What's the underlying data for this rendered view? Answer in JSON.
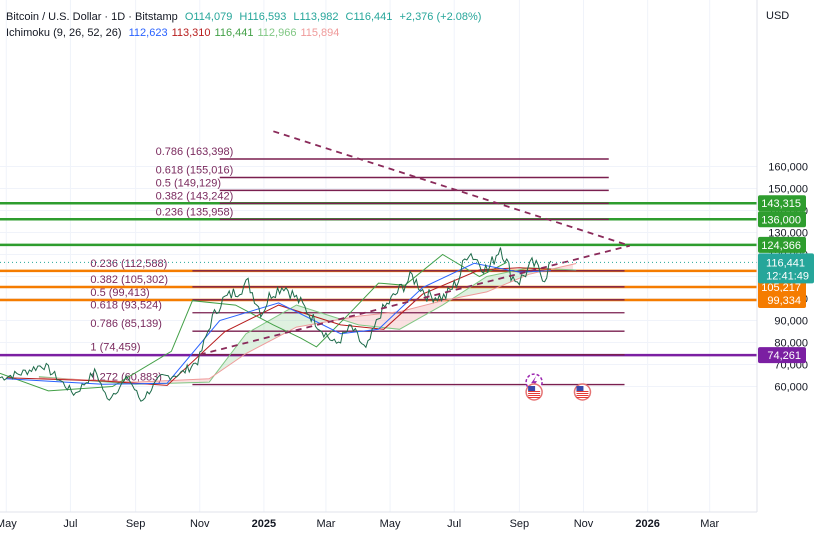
{
  "legend": {
    "symbol": "Bitcoin / U.S. Dollar · 1D · Bitstamp",
    "open": "O114,079",
    "high": "H116,593",
    "low": "L113,982",
    "close": "C116,441",
    "change": "+2,376 (+2.08%)",
    "indicator": "Ichimoku (9, 26, 52, 26)",
    "ichimoku_values": [
      {
        "value": "112,623",
        "color": "#2962ff"
      },
      {
        "value": "113,310",
        "color": "#b71c1c"
      },
      {
        "value": "116,441",
        "color": "#43a047"
      },
      {
        "value": "112,966",
        "color": "#81c784"
      },
      {
        "value": "115,894",
        "color": "#ef9a9a"
      }
    ]
  },
  "chart_data": {
    "type": "line",
    "yaxis_unit": "USD",
    "y_ticks": [
      60000,
      70000,
      80000,
      90000,
      100000,
      110000,
      120000,
      130000,
      140000,
      150000,
      160000
    ],
    "y_tick_labels": [
      "60,000",
      "70,000",
      "80,000",
      "90,000",
      "100,000",
      "110,000",
      "120,000",
      "130,000",
      "140,000",
      "150,000",
      "160,000"
    ],
    "x_tick_labels": [
      "May",
      "Jul",
      "Sep",
      "Nov",
      "2025",
      "Mar",
      "May",
      "Jul",
      "Sep",
      "Nov",
      "2026",
      "Mar"
    ],
    "x_tick_dates": [
      "2024-05-01",
      "2024-07-01",
      "2024-09-01",
      "2024-11-01",
      "2025-01-01",
      "2025-03-01",
      "2025-05-01",
      "2025-07-01",
      "2025-09-01",
      "2025-11-01",
      "2026-01-01",
      "2026-03-01"
    ],
    "ylim": [
      50000,
      168000
    ],
    "xlim": [
      "2024-04-25",
      "2026-04-15"
    ],
    "price_series": {
      "name": "BTCUSD",
      "color": "#1e6b4a",
      "points": [
        [
          "2024-04-25",
          64000
        ],
        [
          "2024-05-15",
          66000
        ],
        [
          "2024-06-05",
          70000
        ],
        [
          "2024-06-25",
          61000
        ],
        [
          "2024-07-05",
          56500
        ],
        [
          "2024-07-25",
          67000
        ],
        [
          "2024-08-05",
          54000
        ],
        [
          "2024-08-25",
          64000
        ],
        [
          "2024-09-06",
          53500
        ],
        [
          "2024-09-25",
          64000
        ],
        [
          "2024-10-15",
          66000
        ],
        [
          "2024-10-31",
          72000
        ],
        [
          "2024-11-12",
          90000
        ],
        [
          "2024-11-22",
          99000
        ],
        [
          "2024-12-05",
          103000
        ],
        [
          "2024-12-17",
          107000
        ],
        [
          "2024-12-30",
          93000
        ],
        [
          "2025-01-07",
          102000
        ],
        [
          "2025-01-20",
          106000
        ],
        [
          "2025-02-05",
          98000
        ],
        [
          "2025-02-25",
          86000
        ],
        [
          "2025-03-10",
          79000
        ],
        [
          "2025-03-25",
          87000
        ],
        [
          "2025-04-08",
          76500
        ],
        [
          "2025-04-22",
          93500
        ],
        [
          "2025-05-10",
          104000
        ],
        [
          "2025-05-22",
          110000
        ],
        [
          "2025-06-05",
          101500
        ],
        [
          "2025-06-22",
          100500
        ],
        [
          "2025-07-05",
          108500
        ],
        [
          "2025-07-14",
          122000
        ],
        [
          "2025-08-02",
          112500
        ],
        [
          "2025-08-14",
          124000
        ],
        [
          "2025-08-25",
          110000
        ],
        [
          "2025-09-01",
          108000
        ],
        [
          "2025-09-14",
          116000
        ],
        [
          "2025-09-25",
          109500
        ],
        [
          "2025-10-01",
          116441
        ]
      ]
    },
    "ichimoku": {
      "tenkan": {
        "name": "Tenkan",
        "color": "#2962ff",
        "points": [
          [
            "2024-05-01",
            63500
          ],
          [
            "2024-08-01",
            61000
          ],
          [
            "2024-10-01",
            61500
          ],
          [
            "2024-11-20",
            90000
          ],
          [
            "2025-01-15",
            98000
          ],
          [
            "2025-03-15",
            84000
          ],
          [
            "2025-04-20",
            86000
          ],
          [
            "2025-06-01",
            105000
          ],
          [
            "2025-07-20",
            116000
          ],
          [
            "2025-09-01",
            112000
          ],
          [
            "2025-10-01",
            112623
          ]
        ]
      },
      "kijun": {
        "name": "Kijun",
        "color": "#b71c1c",
        "points": [
          [
            "2024-05-01",
            64000
          ],
          [
            "2024-08-01",
            62500
          ],
          [
            "2024-10-01",
            60500
          ],
          [
            "2024-11-25",
            85000
          ],
          [
            "2025-01-15",
            97000
          ],
          [
            "2025-03-15",
            88000
          ],
          [
            "2025-04-25",
            86000
          ],
          [
            "2025-06-01",
            102000
          ],
          [
            "2025-07-25",
            113000
          ],
          [
            "2025-09-01",
            114000
          ],
          [
            "2025-10-01",
            113310
          ]
        ]
      },
      "chikou": {
        "name": "Chikou",
        "color": "#43a047",
        "points": [
          [
            "2024-04-25",
            66000
          ],
          [
            "2024-06-10",
            58000
          ],
          [
            "2024-08-10",
            60000
          ],
          [
            "2024-10-05",
            76000
          ],
          [
            "2024-10-25",
            99000
          ],
          [
            "2024-12-05",
            97000
          ],
          [
            "2025-01-10",
            88000
          ],
          [
            "2025-02-05",
            82000
          ],
          [
            "2025-02-20",
            78000
          ],
          [
            "2025-03-25",
            94000
          ],
          [
            "2025-04-20",
            107000
          ],
          [
            "2025-05-15",
            106000
          ],
          [
            "2025-06-20",
            120000
          ],
          [
            "2025-07-25",
            110000
          ],
          [
            "2025-08-20",
            116441
          ]
        ]
      },
      "senkou_a": {
        "name": "Senkou A",
        "color": "#81c784",
        "points": [
          [
            "2024-06-01",
            64500
          ],
          [
            "2024-09-01",
            61000
          ],
          [
            "2024-11-10",
            62000
          ],
          [
            "2024-12-15",
            84000
          ],
          [
            "2025-02-01",
            97000
          ],
          [
            "2025-04-01",
            88000
          ],
          [
            "2025-05-10",
            86000
          ],
          [
            "2025-06-20",
            97000
          ],
          [
            "2025-08-01",
            110000
          ],
          [
            "2025-09-10",
            114000
          ],
          [
            "2025-10-25",
            112966
          ]
        ]
      },
      "senkou_b": {
        "name": "Senkou B",
        "color": "#ef9a9a",
        "points": [
          [
            "2024-06-01",
            64000
          ],
          [
            "2024-09-01",
            62000
          ],
          [
            "2024-11-10",
            63500
          ],
          [
            "2024-12-15",
            75000
          ],
          [
            "2025-02-01",
            87000
          ],
          [
            "2025-04-01",
            92000
          ],
          [
            "2025-05-10",
            94000
          ],
          [
            "2025-06-20",
            99000
          ],
          [
            "2025-08-01",
            103000
          ],
          [
            "2025-09-10",
            111000
          ],
          [
            "2025-10-25",
            115894
          ]
        ]
      }
    },
    "fib_extension": [
      {
        "label": "0.786 (163,398)",
        "value": 163398
      },
      {
        "label": "0.618 (155,016)",
        "value": 155016
      },
      {
        "label": "0.5 (149,129)",
        "value": 149129
      },
      {
        "label": "0.382 (143,242)",
        "value": 143242
      },
      {
        "label": "0.236 (135,958)",
        "value": 135958
      }
    ],
    "fib_retracement": [
      {
        "label": "0.236 (112,588)",
        "value": 112588
      },
      {
        "label": "0.382 (105,302)",
        "value": 105302
      },
      {
        "label": "0.5 (99,413)",
        "value": 99413
      },
      {
        "label": "0.618 (93,524)",
        "value": 93524
      },
      {
        "label": "0.786 (85,139)",
        "value": 85139
      },
      {
        "label": "1 (74,459)",
        "value": 74459
      },
      {
        "label": "1.272 (60,883)",
        "value": 60883
      }
    ],
    "horizontal_levels": [
      {
        "label": "143,315",
        "value": 143315,
        "color": "#2e9d2e"
      },
      {
        "label": "136,000",
        "value": 136000,
        "color": "#2e9d2e"
      },
      {
        "label": "124,366",
        "value": 124366,
        "color": "#2e9d2e"
      },
      {
        "label": "112,574",
        "value": 112574,
        "color": "#f57c00"
      },
      {
        "label": "105,217",
        "value": 105217,
        "color": "#f57c00"
      },
      {
        "label": "99,334",
        "value": 99334,
        "color": "#f57c00"
      },
      {
        "label": "74,261",
        "value": 74261,
        "color": "#7b1fa2"
      }
    ],
    "trendlines": [
      {
        "name": "descending",
        "color": "#8a2a5a",
        "from": [
          "2025-01-10",
          176000
        ],
        "to": [
          "2025-12-15",
          124000
        ]
      },
      {
        "name": "ascending",
        "color": "#8a2a5a",
        "from": [
          "2024-11-01",
          74500
        ],
        "to": [
          "2025-12-15",
          124000
        ]
      }
    ],
    "current_price": {
      "label": "116,441",
      "countdown": "12:41:49",
      "value": 116441,
      "color": "#26a69a"
    },
    "markers": [
      {
        "name": "event-lightning-icon",
        "date": "2025-09-15",
        "value": 62000
      },
      {
        "name": "us-flag-icon",
        "date": "2025-09-15",
        "value": 57500
      },
      {
        "name": "us-flag-icon",
        "date": "2025-10-31",
        "value": 57500
      }
    ]
  }
}
